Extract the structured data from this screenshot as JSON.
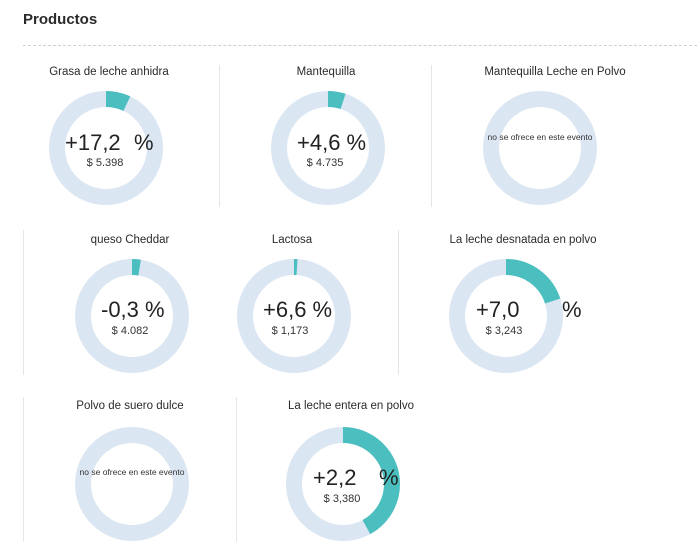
{
  "section": {
    "title": "Productos"
  },
  "colors": {
    "track": "#dbe6f3",
    "progress": "#4bbfbf"
  },
  "products": [
    {
      "name": "Grasa de leche anhidra",
      "pct_value": "+17,2",
      "pct_suffix": "%",
      "price": "$ 5.398",
      "progress": 0.07
    },
    {
      "name": "Mantequilla",
      "pct_value": "+4,6 %",
      "pct_suffix": "",
      "price": "$ 4.735",
      "progress": 0.05
    },
    {
      "name": "Mantequilla Leche en Polvo",
      "not_offered": "no se ofrece en este evento"
    },
    {
      "name": "queso Cheddar",
      "pct_value": "-0,3 %",
      "pct_suffix": "",
      "price": "$ 4.082",
      "progress": 0.025
    },
    {
      "name": "Lactosa",
      "pct_value": "+6,6 %",
      "pct_suffix": "",
      "price": "$ 1,173",
      "progress": 0.01
    },
    {
      "name": "La leche desnatada en polvo",
      "pct_value": "+7,0",
      "pct_suffix": "%",
      "price": "$ 3,243",
      "progress": 0.2
    },
    {
      "name": "Polvo de suero dulce",
      "not_offered": "no se ofrece en este evento"
    },
    {
      "name": "La leche entera en polvo",
      "pct_value": "+2,2",
      "pct_suffix": "%",
      "price": "$ 3,380",
      "progress": 0.42
    }
  ]
}
